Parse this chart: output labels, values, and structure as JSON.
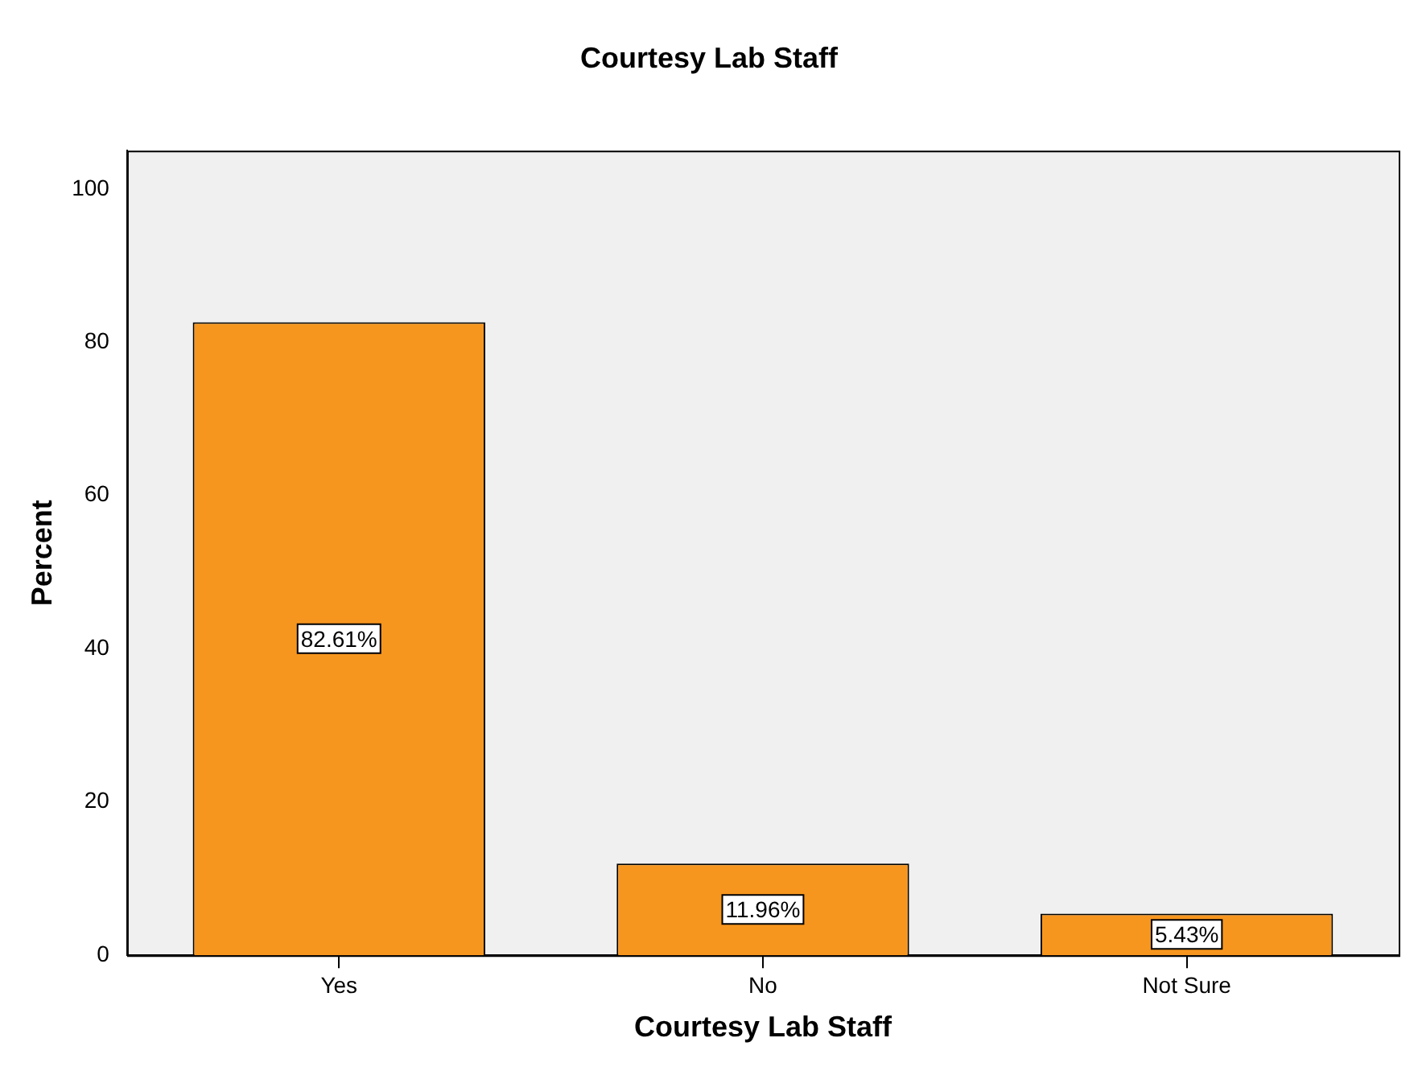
{
  "chart_data": {
    "type": "bar",
    "title": "Courtesy Lab Staff",
    "xlabel": "Courtesy Lab Staff",
    "ylabel": "Percent",
    "categories": [
      "Yes",
      "No",
      "Not Sure"
    ],
    "values": [
      82.61,
      11.96,
      5.43
    ],
    "value_labels": [
      "82.61%",
      "11.96%",
      "5.43%"
    ],
    "color": "#f7961e",
    "ylim": [
      0,
      105
    ],
    "yticks": [
      0,
      20,
      40,
      60,
      80,
      100
    ],
    "grid": false,
    "legend": false
  }
}
